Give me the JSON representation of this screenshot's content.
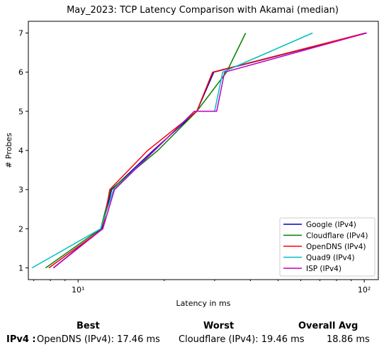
{
  "chart_data": {
    "type": "line",
    "title": "May_2023: TCP Latency Comparison with Akamai (median)",
    "xlabel": "Latency in ms",
    "ylabel": "# Probes",
    "xscale": "log",
    "xlim": [
      6.7,
      112
    ],
    "ylim": [
      0.7,
      7.3
    ],
    "xticks": [
      {
        "value": 10,
        "label": "10¹"
      },
      {
        "value": 100,
        "label": "10²"
      }
    ],
    "yticks": [
      1,
      2,
      3,
      4,
      5,
      6,
      7
    ],
    "grid": false,
    "legend_position": "lower-right",
    "series": [
      {
        "name": "Google (IPv4)",
        "color": "#0000bf",
        "points": [
          [
            8.2,
            1
          ],
          [
            12.1,
            2
          ],
          [
            13.1,
            3
          ],
          [
            18.3,
            4
          ],
          [
            26.0,
            5
          ],
          [
            29.8,
            6
          ],
          [
            102,
            7
          ]
        ]
      },
      {
        "name": "Cloudflare (IPv4)",
        "color": "#008000",
        "points": [
          [
            7.7,
            1
          ],
          [
            12.0,
            2
          ],
          [
            13.0,
            3
          ],
          [
            19.0,
            4
          ],
          [
            26.0,
            5
          ],
          [
            33.0,
            6
          ],
          [
            38.5,
            7
          ]
        ]
      },
      {
        "name": "OpenDNS (IPv4)",
        "color": "#ff0000",
        "points": [
          [
            7.9,
            1
          ],
          [
            12.2,
            2
          ],
          [
            12.9,
            3
          ],
          [
            17.5,
            4
          ],
          [
            26.0,
            5
          ],
          [
            29.5,
            6
          ],
          [
            101,
            7
          ]
        ]
      },
      {
        "name": "Quad9 (IPv4)",
        "color": "#00bfbf",
        "points": [
          [
            6.9,
            1
          ],
          [
            12.0,
            2
          ],
          [
            13.3,
            3
          ],
          [
            18.5,
            4
          ],
          [
            25.5,
            5
          ],
          [
            30.0,
            5
          ],
          [
            32.0,
            6
          ],
          [
            66.0,
            7
          ]
        ]
      },
      {
        "name": "ISP (IPv4)",
        "color": "#bf00bf",
        "points": [
          [
            8.2,
            1
          ],
          [
            12.2,
            2
          ],
          [
            13.4,
            3
          ],
          [
            18.5,
            4
          ],
          [
            25.5,
            5
          ],
          [
            30.5,
            5
          ],
          [
            32.5,
            6
          ],
          [
            102,
            7
          ]
        ]
      }
    ]
  },
  "summary": {
    "best_label": "Best",
    "worst_label": "Worst",
    "avg_label": "Overall Avg",
    "row_label": "IPv4 :",
    "best_value": "OpenDNS (IPv4): 17.46 ms",
    "worst_value": "Cloudflare (IPv4): 19.46 ms",
    "avg_value": "18.86 ms"
  }
}
